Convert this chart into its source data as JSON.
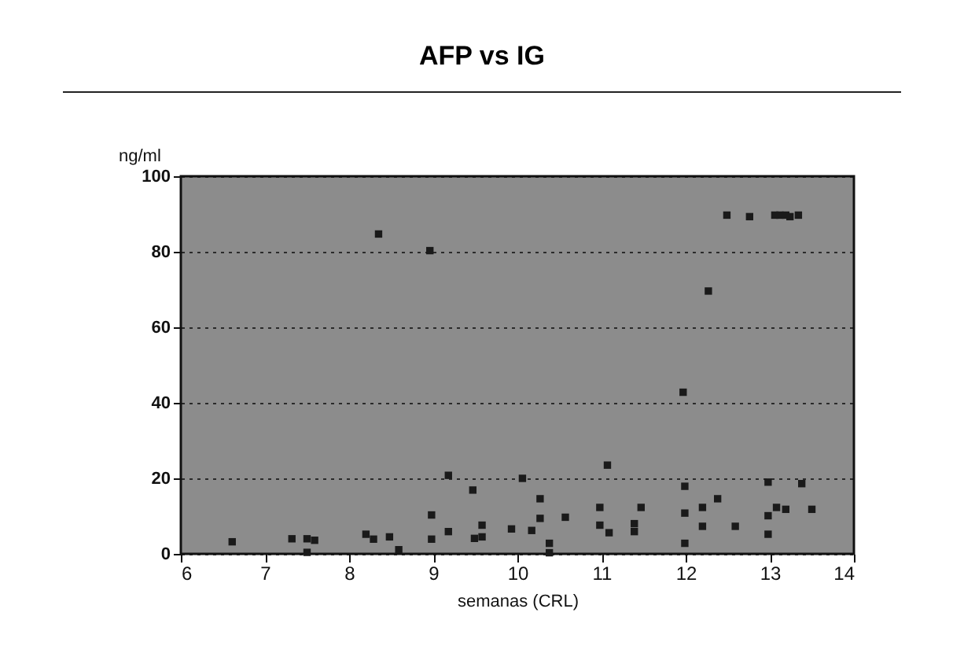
{
  "chart_data": {
    "type": "scatter",
    "title": "AFP vs IG",
    "xlabel": "semanas (CRL)",
    "ylabel": "ng/ml",
    "x": [
      6.61,
      7.32,
      7.5,
      7.59,
      7.5,
      8.2,
      8.29,
      8.35,
      8.48,
      8.59,
      8.96,
      8.98,
      8.98,
      9.18,
      9.18,
      9.47,
      9.49,
      9.58,
      9.58,
      9.93,
      10.06,
      10.17,
      10.27,
      10.27,
      10.38,
      10.38,
      10.57,
      10.98,
      10.98,
      11.07,
      11.09,
      11.39,
      11.39,
      11.47,
      11.97,
      11.99,
      11.99,
      11.99,
      12.2,
      12.2,
      12.27,
      12.38,
      12.49,
      12.59,
      12.76,
      12.98,
      12.98,
      12.98,
      13.06,
      13.12,
      13.19,
      13.24,
      13.34,
      13.08,
      13.19,
      13.38,
      13.5
    ],
    "values": [
      3.2,
      4,
      4,
      3.6,
      0.4,
      5.2,
      3.9,
      84.7,
      4.5,
      1.1,
      80.3,
      10.3,
      3.9,
      20.8,
      5.9,
      16.9,
      4.1,
      7.6,
      4.5,
      6.6,
      20,
      6.2,
      14.6,
      9.4,
      2.8,
      0.3,
      9.7,
      12.3,
      7.6,
      23.5,
      5.6,
      8,
      5.9,
      12.3,
      42.8,
      17.9,
      10.8,
      2.8,
      12.3,
      7.3,
      69.6,
      14.6,
      89.7,
      7.3,
      89.3,
      19,
      10.1,
      5.2,
      89.7,
      89.7,
      89.7,
      89.3,
      89.7,
      12.3,
      11.8,
      18.6,
      11.8
    ],
    "color": "#1a1a1a",
    "marker": "square",
    "xlim": [
      6,
      14
    ],
    "xticks": [
      6,
      7,
      8,
      9,
      10,
      11,
      12,
      13,
      14
    ],
    "ylim": [
      0,
      100
    ],
    "yticks": [
      0,
      20,
      40,
      60,
      80,
      100
    ],
    "grid": "y"
  }
}
